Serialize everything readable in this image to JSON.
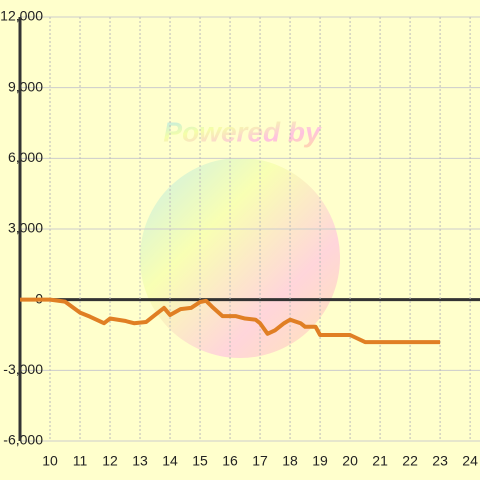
{
  "chart_data": {
    "type": "line",
    "watermark": "Powered by",
    "x": [
      9,
      10,
      10.5,
      11,
      11.33,
      11.8,
      12,
      12.5,
      12.8,
      13.2,
      13.5,
      13.8,
      14,
      14.35,
      14.7,
      15,
      15.2,
      15.4,
      15.75,
      16.2,
      16.5,
      16.85,
      17,
      17.25,
      17.5,
      17.8,
      18,
      18.35,
      18.5,
      18.85,
      19,
      20,
      20.5,
      23
    ],
    "series": [
      {
        "color": "#e07f24",
        "values": [
          0,
          0,
          -85,
          -550,
          -720,
          -1000,
          -800,
          -900,
          -1000,
          -950,
          -650,
          -350,
          -650,
          -400,
          -350,
          -100,
          -50,
          -300,
          -700,
          -700,
          -800,
          -850,
          -1000,
          -1450,
          -1300,
          -1000,
          -850,
          -1000,
          -1150,
          -1150,
          -1500,
          -1500,
          -1800,
          -1800
        ]
      }
    ],
    "xlim": [
      9,
      24.33
    ],
    "xticks": [
      10,
      11,
      12,
      13,
      14,
      15,
      16,
      17,
      18,
      19,
      20,
      21,
      22,
      23,
      24
    ],
    "ylim": [
      -6000,
      12000
    ],
    "yticks": [
      {
        "value": -6000,
        "label": "-6,000"
      },
      {
        "value": -3000,
        "label": "-3,000"
      },
      0,
      {
        "value": 3000,
        "label": "3,000"
      },
      {
        "value": 6000,
        "label": "6,000"
      },
      {
        "value": 9000,
        "label": "9,000"
      },
      {
        "value": 12000,
        "label": "12,000"
      }
    ],
    "grid": true
  }
}
